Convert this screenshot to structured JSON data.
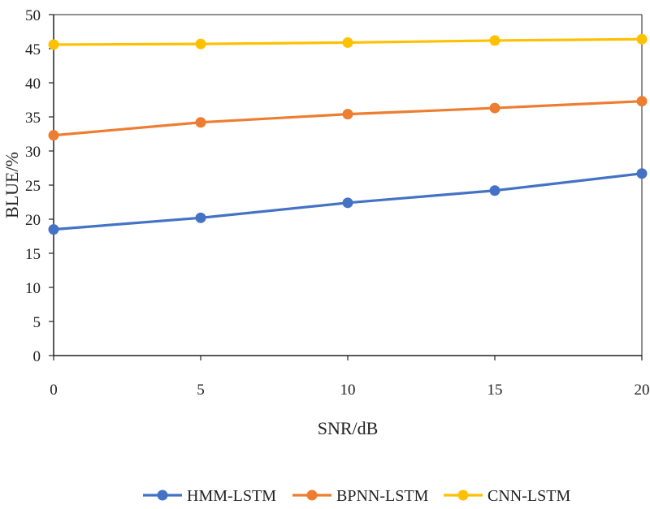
{
  "chart_data": {
    "type": "line",
    "x": [
      0,
      5,
      10,
      15,
      20
    ],
    "x_ticks": [
      "0",
      "5",
      "10",
      "15",
      "20"
    ],
    "y_ticks": [
      "0",
      "5",
      "10",
      "15",
      "20",
      "25",
      "30",
      "35",
      "40",
      "45",
      "50"
    ],
    "xlim": [
      0,
      20
    ],
    "ylim": [
      0,
      50
    ],
    "xlabel": "SNR/dB",
    "ylabel": "BLUE/%",
    "grid": false,
    "legend_position": "bottom",
    "series": [
      {
        "name": "HMM-LSTM",
        "color": "#4472C4",
        "values": [
          18.5,
          20.2,
          22.4,
          24.2,
          26.7
        ]
      },
      {
        "name": "BPNN-LSTM",
        "color": "#ED7D31",
        "values": [
          32.3,
          34.2,
          35.4,
          36.3,
          37.3
        ]
      },
      {
        "name": "CNN-LSTM",
        "color": "#FFC000",
        "values": [
          45.6,
          45.7,
          45.9,
          46.2,
          46.4
        ]
      }
    ]
  }
}
